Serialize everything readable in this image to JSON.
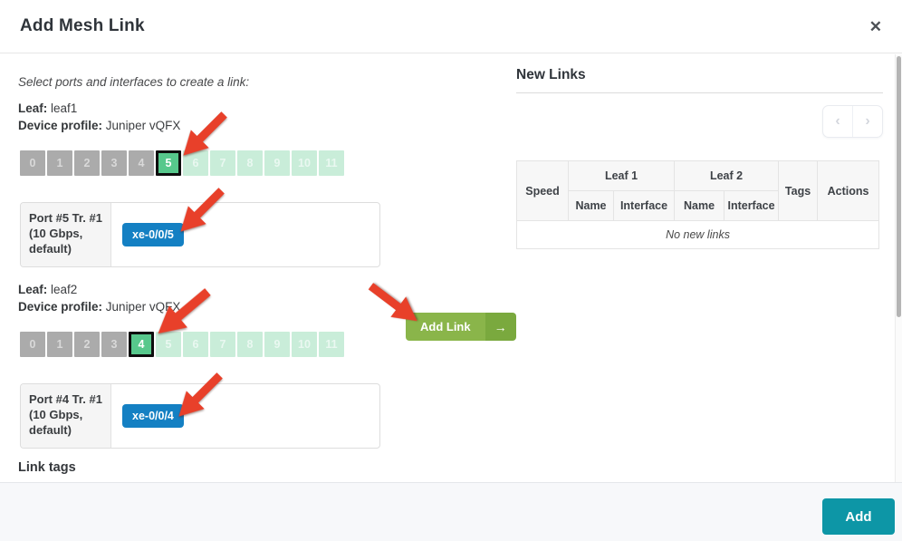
{
  "dialog": {
    "title": "Add Mesh Link",
    "close_icon": "✕"
  },
  "hint": "Select ports and interfaces to create a link:",
  "sections": [
    {
      "leaf_label": "Leaf:",
      "leaf_name": "leaf1",
      "profile_label": "Device profile:",
      "profile_value": "Juniper vQFX",
      "ports": [
        {
          "label": "0",
          "state": "used"
        },
        {
          "label": "1",
          "state": "used"
        },
        {
          "label": "2",
          "state": "used"
        },
        {
          "label": "3",
          "state": "used"
        },
        {
          "label": "4",
          "state": "used"
        },
        {
          "label": "5",
          "state": "selected"
        },
        {
          "label": "6",
          "state": "available"
        },
        {
          "label": "7",
          "state": "available"
        },
        {
          "label": "8",
          "state": "available"
        },
        {
          "label": "9",
          "state": "available"
        },
        {
          "label": "10",
          "state": "available"
        },
        {
          "label": "11",
          "state": "available"
        }
      ],
      "port_box": {
        "title": "Port #5 Tr. #1 (10 Gbps, default)",
        "interface": "xe-0/0/5"
      }
    },
    {
      "leaf_label": "Leaf:",
      "leaf_name": "leaf2",
      "profile_label": "Device profile:",
      "profile_value": "Juniper vQFX",
      "ports": [
        {
          "label": "0",
          "state": "used"
        },
        {
          "label": "1",
          "state": "used"
        },
        {
          "label": "2",
          "state": "used"
        },
        {
          "label": "3",
          "state": "used"
        },
        {
          "label": "4",
          "state": "selected"
        },
        {
          "label": "5",
          "state": "available"
        },
        {
          "label": "6",
          "state": "available"
        },
        {
          "label": "7",
          "state": "available"
        },
        {
          "label": "8",
          "state": "available"
        },
        {
          "label": "9",
          "state": "available"
        },
        {
          "label": "10",
          "state": "available"
        },
        {
          "label": "11",
          "state": "available"
        }
      ],
      "port_box": {
        "title": "Port #4 Tr. #1 (10 Gbps, default)",
        "interface": "xe-0/0/4"
      }
    }
  ],
  "link_tags_label": "Link tags",
  "add_link": {
    "label": "Add Link",
    "arrow_icon": "→"
  },
  "new_links": {
    "title": "New Links",
    "pagination": {
      "prev_icon": "‹",
      "next_icon": "›"
    },
    "table": {
      "speed": "Speed",
      "leaf1": "Leaf 1",
      "leaf2": "Leaf 2",
      "name": "Name",
      "interface": "Interface",
      "tags": "Tags",
      "actions": "Actions",
      "empty": "No new links"
    }
  },
  "footer": {
    "add_label": "Add"
  },
  "colors": {
    "selected-port": "#57c88c",
    "available-port": "#c9edd9",
    "used-port": "#ababab",
    "interface-badge": "#1480c3",
    "add-link-green": "#8ab54a",
    "add-link-green-dark": "#7aa93e",
    "add-teal": "#0d96a6",
    "annotation-red": "#e8402a"
  }
}
